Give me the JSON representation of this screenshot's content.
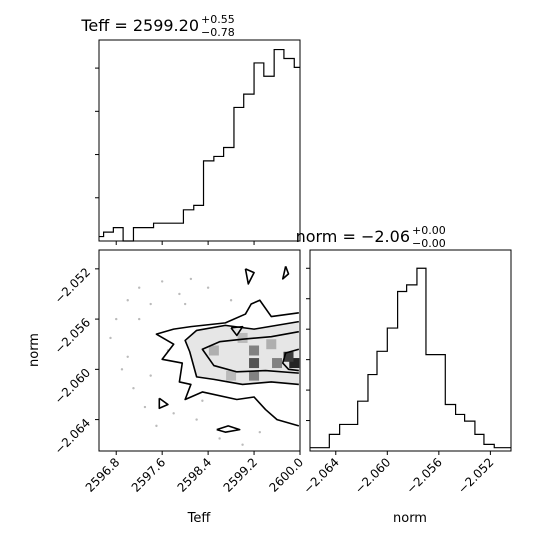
{
  "chart_data": [
    {
      "type": "histogram",
      "panel": "top-left",
      "title": {
        "main": "Teff = 2599.20",
        "sup": "+0.55",
        "sub": "−0.78"
      },
      "xlim": [
        2596.5,
        2600.0
      ],
      "bins": [
        {
          "x0": 2596.5,
          "x1": 2596.58,
          "count": 1
        },
        {
          "x0": 2596.58,
          "x1": 2596.75,
          "count": 2
        },
        {
          "x0": 2596.75,
          "x1": 2596.92,
          "count": 3
        },
        {
          "x0": 2596.92,
          "x1": 2597.1,
          "count": 0
        },
        {
          "x0": 2597.1,
          "x1": 2597.45,
          "count": 3
        },
        {
          "x0": 2597.45,
          "x1": 2597.97,
          "count": 4
        },
        {
          "x0": 2597.97,
          "x1": 2598.15,
          "count": 7
        },
        {
          "x0": 2598.15,
          "x1": 2598.32,
          "count": 8
        },
        {
          "x0": 2598.32,
          "x1": 2598.5,
          "count": 18
        },
        {
          "x0": 2598.5,
          "x1": 2598.67,
          "count": 19
        },
        {
          "x0": 2598.67,
          "x1": 2598.85,
          "count": 21
        },
        {
          "x0": 2598.85,
          "x1": 2599.02,
          "count": 30
        },
        {
          "x0": 2599.02,
          "x1": 2599.2,
          "count": 33
        },
        {
          "x0": 2599.2,
          "x1": 2599.37,
          "count": 40
        },
        {
          "x0": 2599.37,
          "x1": 2599.55,
          "count": 37
        },
        {
          "x0": 2599.55,
          "x1": 2599.72,
          "count": 43
        },
        {
          "x0": 2599.72,
          "x1": 2599.9,
          "count": 41
        },
        {
          "x0": 2599.9,
          "x1": 2600.0,
          "count": 39
        }
      ]
    },
    {
      "type": "histogram",
      "panel": "bottom-right",
      "title": {
        "main": "norm = −2.06",
        "sup": "+0.00",
        "sub": "−0.00"
      },
      "xlim": [
        -2.066,
        -2.0504
      ],
      "xticks": [
        "−2.064",
        "−2.060",
        "−2.056",
        "−2.052"
      ],
      "xtick_values": [
        -2.064,
        -2.06,
        -2.056,
        -2.052
      ],
      "xlabel": "norm",
      "bins": [
        {
          "x0": -2.066,
          "x1": -2.0645,
          "count": 1
        },
        {
          "x0": -2.0645,
          "x1": -2.0637,
          "count": 5
        },
        {
          "x0": -2.0637,
          "x1": -2.0623,
          "count": 8
        },
        {
          "x0": -2.0623,
          "x1": -2.0615,
          "count": 15
        },
        {
          "x0": -2.0615,
          "x1": -2.0608,
          "count": 23
        },
        {
          "x0": -2.0608,
          "x1": -2.06,
          "count": 30
        },
        {
          "x0": -2.06,
          "x1": -2.0592,
          "count": 37
        },
        {
          "x0": -2.0592,
          "x1": -2.0585,
          "count": 48
        },
        {
          "x0": -2.0585,
          "x1": -2.0577,
          "count": 50
        },
        {
          "x0": -2.0577,
          "x1": -2.057,
          "count": 55
        },
        {
          "x0": -2.057,
          "x1": -2.0562,
          "count": 29
        },
        {
          "x0": -2.0562,
          "x1": -2.0555,
          "count": 29
        },
        {
          "x0": -2.0555,
          "x1": -2.0547,
          "count": 14
        },
        {
          "x0": -2.0547,
          "x1": -2.054,
          "count": 11
        },
        {
          "x0": -2.054,
          "x1": -2.0532,
          "count": 9
        },
        {
          "x0": -2.0532,
          "x1": -2.0525,
          "count": 5
        },
        {
          "x0": -2.0525,
          "x1": -2.0517,
          "count": 2
        },
        {
          "x0": -2.0517,
          "x1": -2.0504,
          "count": 1
        }
      ]
    },
    {
      "type": "contour-scatter",
      "panel": "bottom-left",
      "xlabel": "Teff",
      "ylabel": "norm",
      "xlim": [
        2596.5,
        2600.0
      ],
      "ylim": [
        -2.0665,
        -2.0505
      ],
      "xticks": [
        "2596.8",
        "2597.6",
        "2598.4",
        "2599.2",
        "2600.0"
      ],
      "xtick_values": [
        2596.8,
        2597.6,
        2598.4,
        2599.2,
        2600.0
      ],
      "yticks": [
        "−2.052",
        "−2.056",
        "−2.060",
        "−2.064"
      ],
      "ytick_values": [
        -2.052,
        -2.056,
        -2.06,
        -2.064
      ],
      "density_cells": [
        {
          "x": 2599.2,
          "y": -2.0585,
          "level": 0.55
        },
        {
          "x": 2599.2,
          "y": -2.0595,
          "level": 0.75
        },
        {
          "x": 2599.2,
          "y": -2.0605,
          "level": 0.55
        },
        {
          "x": 2599.6,
          "y": -2.0595,
          "level": 0.55
        },
        {
          "x": 2599.9,
          "y": -2.0595,
          "level": 0.95
        },
        {
          "x": 2599.8,
          "y": -2.059,
          "level": 0.85
        },
        {
          "x": 2598.5,
          "y": -2.0585,
          "level": 0.35
        },
        {
          "x": 2599.0,
          "y": -2.0575,
          "level": 0.3
        },
        {
          "x": 2599.5,
          "y": -2.058,
          "level": 0.35
        },
        {
          "x": 2598.8,
          "y": -2.0605,
          "level": 0.3
        }
      ],
      "contours": [
        [
          [
            2599.98,
            -2.0562
          ],
          [
            2599.2,
            -2.0568
          ],
          [
            2598.7,
            -2.0565
          ],
          [
            2598.2,
            -2.0569
          ],
          [
            2598.0,
            -2.0577
          ],
          [
            2598.08,
            -2.0586
          ],
          [
            2598.2,
            -2.0606
          ],
          [
            2598.5,
            -2.0608
          ],
          [
            2599.0,
            -2.0612
          ],
          [
            2599.5,
            -2.061
          ],
          [
            2599.98,
            -2.0612
          ]
        ],
        [
          [
            2599.98,
            -2.057
          ],
          [
            2599.5,
            -2.0574
          ],
          [
            2599.0,
            -2.0576
          ],
          [
            2598.6,
            -2.0578
          ],
          [
            2598.3,
            -2.0584
          ],
          [
            2598.5,
            -2.0597
          ],
          [
            2598.9,
            -2.0602
          ],
          [
            2599.4,
            -2.0601
          ],
          [
            2599.98,
            -2.0603
          ]
        ],
        [
          [
            2599.98,
            -2.0584
          ],
          [
            2599.75,
            -2.0587
          ],
          [
            2599.7,
            -2.0595
          ],
          [
            2599.8,
            -2.06
          ],
          [
            2599.98,
            -2.0601
          ]
        ],
        [
          [
            2599.98,
            -2.0555
          ],
          [
            2599.5,
            -2.0558
          ],
          [
            2599.3,
            -2.0545
          ],
          [
            2599.15,
            -2.0548
          ],
          [
            2599.05,
            -2.0556
          ],
          [
            2598.7,
            -2.0563
          ],
          [
            2598.1,
            -2.0566
          ],
          [
            2597.8,
            -2.0568
          ],
          [
            2597.5,
            -2.0572
          ],
          [
            2597.8,
            -2.058
          ],
          [
            2597.6,
            -2.0592
          ],
          [
            2597.95,
            -2.0595
          ],
          [
            2597.9,
            -2.061
          ],
          [
            2598.1,
            -2.0612
          ],
          [
            2598.0,
            -2.0624
          ],
          [
            2598.3,
            -2.0618
          ],
          [
            2598.9,
            -2.0624
          ],
          [
            2599.2,
            -2.0622
          ],
          [
            2599.4,
            -2.0632
          ],
          [
            2599.6,
            -2.064
          ],
          [
            2599.98,
            -2.0645
          ]
        ],
        [
          [
            2597.55,
            -2.0623
          ],
          [
            2597.7,
            -2.0628
          ],
          [
            2597.55,
            -2.0631
          ],
          [
            2597.55,
            -2.0623
          ]
        ],
        [
          [
            2598.55,
            -2.0648
          ],
          [
            2598.75,
            -2.0645
          ],
          [
            2598.95,
            -2.0648
          ],
          [
            2598.7,
            -2.065
          ],
          [
            2598.55,
            -2.0648
          ]
        ],
        [
          [
            2599.05,
            -2.052
          ],
          [
            2599.2,
            -2.0523
          ],
          [
            2599.1,
            -2.0532
          ],
          [
            2599.05,
            -2.052
          ]
        ],
        [
          [
            2599.75,
            -2.0518
          ],
          [
            2599.8,
            -2.0524
          ],
          [
            2599.7,
            -2.0528
          ],
          [
            2599.75,
            -2.0518
          ]
        ],
        [
          [
            2598.8,
            -2.0567
          ],
          [
            2599.0,
            -2.0566
          ],
          [
            2598.9,
            -2.0573
          ],
          [
            2598.8,
            -2.0567
          ]
        ]
      ],
      "points": [
        [
          2597.0,
          -2.0545
        ],
        [
          2597.2,
          -2.0535
        ],
        [
          2597.4,
          -2.0548
        ],
        [
          2596.7,
          -2.0575
        ],
        [
          2596.9,
          -2.06
        ],
        [
          2597.6,
          -2.053
        ],
        [
          2597.9,
          -2.054
        ],
        [
          2598.1,
          -2.0528
        ],
        [
          2597.1,
          -2.0615
        ],
        [
          2597.3,
          -2.063
        ],
        [
          2597.5,
          -2.0645
        ],
        [
          2597.8,
          -2.0635
        ],
        [
          2598.2,
          -2.064
        ],
        [
          2598.6,
          -2.0655
        ],
        [
          2599.0,
          -2.066
        ],
        [
          2596.8,
          -2.056
        ],
        [
          2597.0,
          -2.059
        ],
        [
          2597.4,
          -2.0605
        ],
        [
          2598.0,
          -2.0548
        ],
        [
          2598.4,
          -2.0535
        ],
        [
          2598.8,
          -2.0545
        ],
        [
          2597.7,
          -2.0585
        ],
        [
          2597.2,
          -2.056
        ],
        [
          2598.3,
          -2.0625
        ],
        [
          2599.3,
          -2.065
        ]
      ]
    }
  ]
}
